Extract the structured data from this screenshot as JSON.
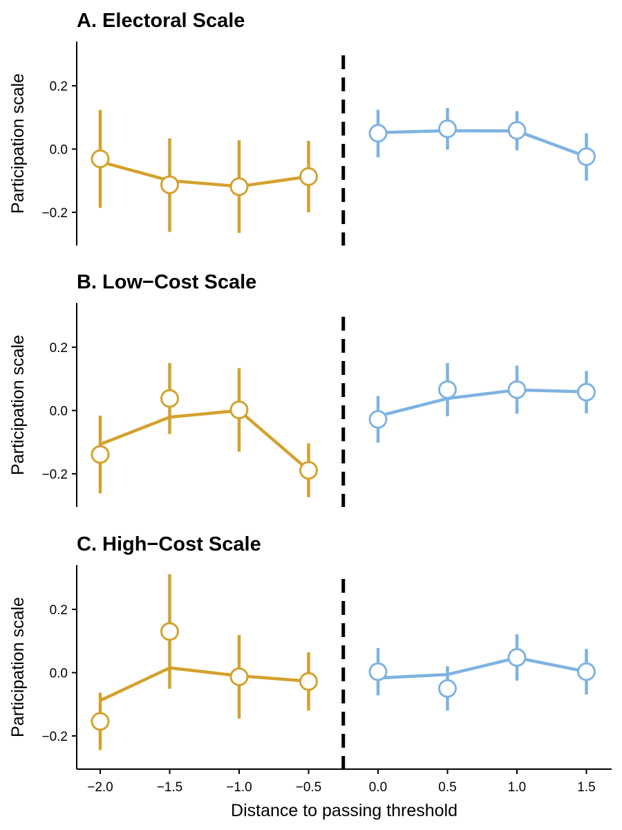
{
  "chart_data": {
    "type": "line",
    "xlabel": "Distance to passing threshold",
    "xlim": [
      -2.2,
      1.65
    ],
    "x_ticks": [
      -2.0,
      -1.5,
      -1.0,
      -0.5,
      0.0,
      0.5,
      1.0,
      1.5
    ],
    "x_tick_labels": [
      "−2.0",
      "−1.5",
      "−1.0",
      "−0.5",
      "0.0",
      "0.5",
      "1.0",
      "1.5"
    ],
    "threshold_x": -0.25,
    "colors": {
      "below": "#D4A12C",
      "above": "#7EB3E3"
    },
    "grid": false,
    "legend": "none",
    "panels": [
      {
        "title": "A. Electoral Scale",
        "ylabel": "Participation scale",
        "ylim": [
          -0.305,
          0.34
        ],
        "y_ticks": [
          -0.2,
          0.0,
          0.2
        ],
        "y_tick_labels": [
          "−0.2",
          "0.0",
          "0.2"
        ],
        "series": [
          {
            "group": "below",
            "x": [
              -2.0,
              -1.5,
              -1.0,
              -0.5
            ],
            "points": [
              -0.031,
              -0.113,
              -0.119,
              -0.087
            ],
            "ci_low": [
              -0.186,
              -0.262,
              -0.265,
              -0.2
            ],
            "ci_high": [
              0.124,
              0.034,
              0.028,
              0.026
            ],
            "fit": [
              -0.04,
              -0.1,
              -0.118,
              -0.087
            ]
          },
          {
            "group": "above",
            "x": [
              0.0,
              0.5,
              1.0,
              1.5
            ],
            "points": [
              0.05,
              0.064,
              0.059,
              -0.024
            ],
            "ci_low": [
              -0.026,
              -0.002,
              -0.004,
              -0.1
            ],
            "ci_high": [
              0.124,
              0.13,
              0.12,
              0.05
            ],
            "fit": [
              0.052,
              0.058,
              0.057,
              -0.024
            ]
          }
        ]
      },
      {
        "title": "B. Low−Cost Scale",
        "ylabel": "Participation scale",
        "ylim": [
          -0.305,
          0.34
        ],
        "y_ticks": [
          -0.2,
          0.0,
          0.2
        ],
        "y_tick_labels": [
          "−0.2",
          "0.0",
          "0.2"
        ],
        "series": [
          {
            "group": "below",
            "x": [
              -2.0,
              -1.5,
              -1.0,
              -0.5
            ],
            "points": [
              -0.139,
              0.038,
              0.002,
              -0.189
            ],
            "ci_low": [
              -0.262,
              -0.074,
              -0.13,
              -0.274
            ],
            "ci_high": [
              -0.016,
              0.15,
              0.134,
              -0.104
            ],
            "fit": [
              -0.107,
              -0.021,
              0.0,
              -0.189
            ]
          },
          {
            "group": "above",
            "x": [
              0.0,
              0.5,
              1.0,
              1.5
            ],
            "points": [
              -0.028,
              0.066,
              0.066,
              0.058
            ],
            "ci_low": [
              -0.102,
              -0.018,
              -0.01,
              -0.009
            ],
            "ci_high": [
              0.046,
              0.15,
              0.142,
              0.125
            ],
            "fit": [
              -0.018,
              0.038,
              0.065,
              0.059
            ]
          }
        ]
      },
      {
        "title": "C. High−Cost Scale",
        "ylabel": "Participation scale",
        "ylim": [
          -0.305,
          0.34
        ],
        "y_ticks": [
          -0.2,
          0.0,
          0.2
        ],
        "y_tick_labels": [
          "−0.2",
          "0.0",
          "0.2"
        ],
        "series": [
          {
            "group": "below",
            "x": [
              -2.0,
              -1.5,
              -1.0,
              -0.5
            ],
            "points": [
              -0.154,
              0.13,
              -0.013,
              -0.028
            ],
            "ci_low": [
              -0.245,
              -0.051,
              -0.145,
              -0.12
            ],
            "ci_high": [
              -0.063,
              0.311,
              0.119,
              0.064
            ],
            "fit": [
              -0.088,
              0.015,
              -0.01,
              -0.027
            ]
          },
          {
            "group": "above",
            "x": [
              0.0,
              0.5,
              1.0,
              1.5
            ],
            "points": [
              0.003,
              -0.05,
              0.048,
              0.003
            ],
            "ci_low": [
              -0.072,
              -0.12,
              -0.025,
              -0.069
            ],
            "ci_high": [
              0.078,
              0.02,
              0.121,
              0.075
            ],
            "fit": [
              -0.017,
              -0.006,
              0.047,
              0.003
            ]
          }
        ]
      }
    ]
  }
}
